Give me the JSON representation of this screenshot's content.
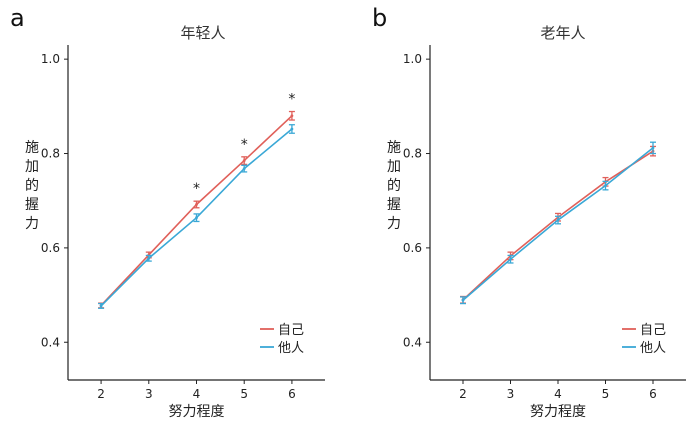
{
  "chart_data": [
    {
      "type": "line",
      "panel_label": "a",
      "title": "年轻人",
      "xlabel": "努力程度",
      "ylabel": "施加的握力",
      "x": [
        2,
        3,
        4,
        5,
        6
      ],
      "xlim": [
        1.6,
        6.4
      ],
      "ylim": [
        0.32,
        1.03
      ],
      "yticks": [
        "0.4",
        "0.6",
        "0.8",
        "1.0"
      ],
      "grid": false,
      "legend_position": "bottom-right",
      "series": [
        {
          "name": "自己",
          "color": "#e0605a",
          "values": [
            0.478,
            0.585,
            0.692,
            0.785,
            0.88
          ],
          "errors": [
            0.005,
            0.006,
            0.007,
            0.008,
            0.009
          ]
        },
        {
          "name": "他人",
          "color": "#3aa8d6",
          "values": [
            0.477,
            0.578,
            0.664,
            0.768,
            0.852
          ],
          "errors": [
            0.005,
            0.006,
            0.008,
            0.007,
            0.009
          ]
        }
      ],
      "annotations": [
        {
          "x": 4,
          "text": "*"
        },
        {
          "x": 5,
          "text": "*"
        },
        {
          "x": 6,
          "text": "*"
        }
      ]
    },
    {
      "type": "line",
      "panel_label": "b",
      "title": "老年人",
      "xlabel": "努力程度",
      "ylabel": "施加的握力",
      "x": [
        2,
        3,
        4,
        5,
        6
      ],
      "xlim": [
        1.6,
        6.4
      ],
      "ylim": [
        0.32,
        1.03
      ],
      "yticks": [
        "0.4",
        "0.6",
        "0.8",
        "1.0"
      ],
      "grid": false,
      "legend_position": "bottom-right",
      "series": [
        {
          "name": "自己",
          "color": "#e0605a",
          "values": [
            0.49,
            0.583,
            0.665,
            0.74,
            0.805
          ],
          "errors": [
            0.007,
            0.008,
            0.008,
            0.009,
            0.01
          ]
        },
        {
          "name": "他人",
          "color": "#3aa8d6",
          "values": [
            0.489,
            0.576,
            0.659,
            0.732,
            0.812
          ],
          "errors": [
            0.007,
            0.008,
            0.008,
            0.009,
            0.012
          ]
        }
      ],
      "annotations": []
    }
  ]
}
